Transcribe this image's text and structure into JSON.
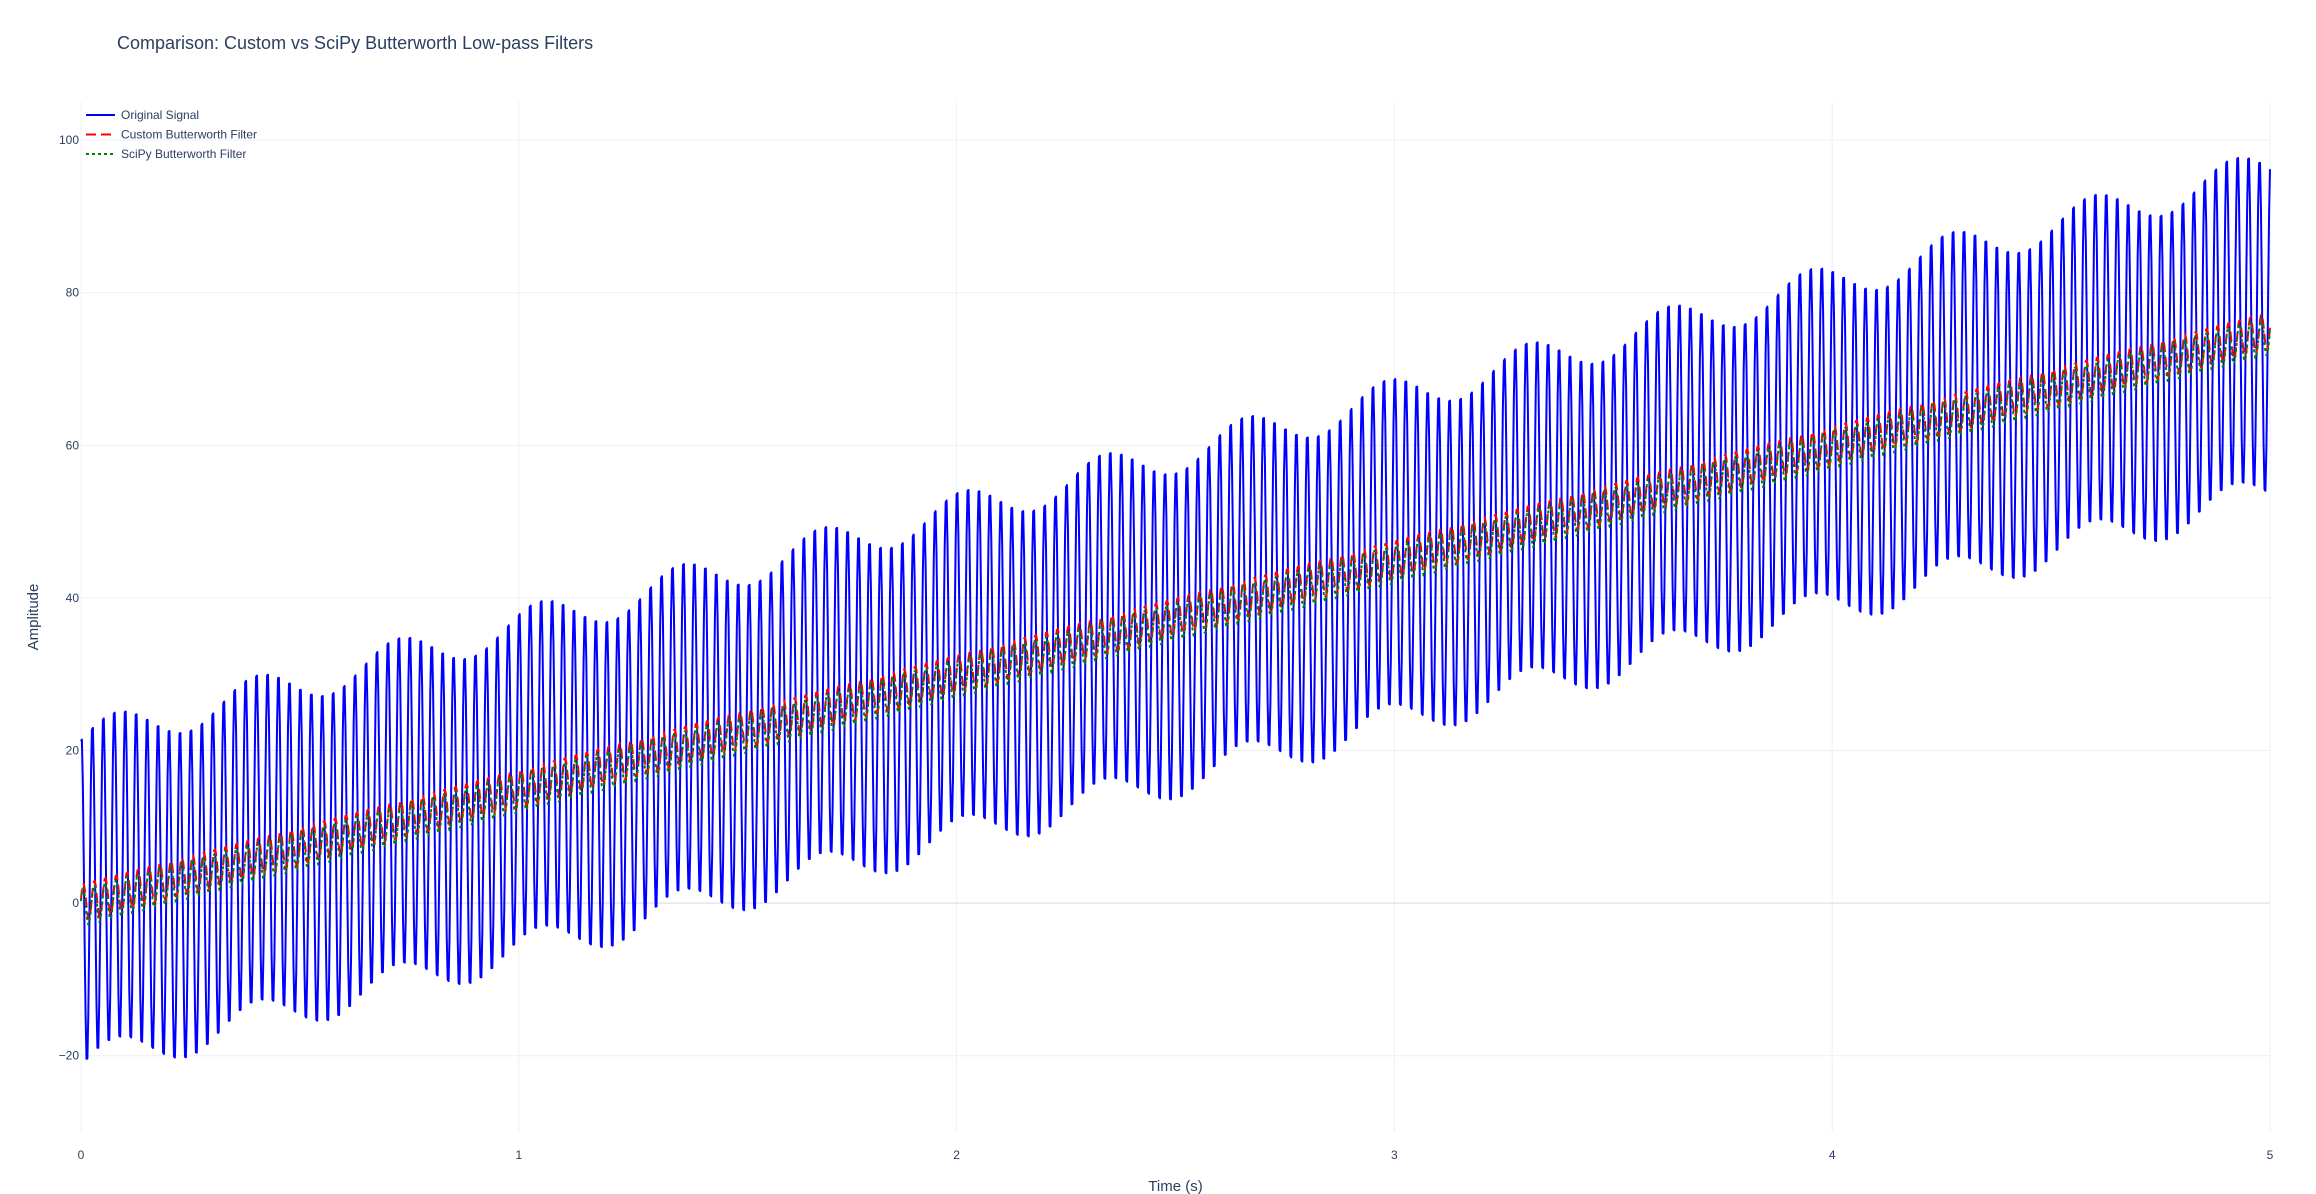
{
  "chart_data": {
    "type": "line",
    "title": "Comparison: Custom vs SciPy Butterworth Low-pass Filters",
    "xlabel": "Time (s)",
    "ylabel": "Amplitude",
    "xlim": [
      0,
      5
    ],
    "ylim": [
      -30,
      105
    ],
    "xticks": [
      0,
      1,
      2,
      3,
      4,
      5
    ],
    "yticks": [
      -20,
      0,
      20,
      40,
      60,
      80,
      100
    ],
    "ytick_labels": [
      "−20",
      "0",
      "20",
      "40",
      "60",
      "80",
      "100"
    ],
    "grid": true,
    "legend_position": "top-left",
    "signal_model": {
      "description": "trend + oscillation",
      "trend_start": 0,
      "trend_end": 75,
      "oscillation_frequency_hz": 40,
      "original_amplitude_start": 22,
      "original_amplitude_end": 22,
      "filtered_amplitude": 2.5
    },
    "series": [
      {
        "name": "Original Signal",
        "color": "#0000ff",
        "dash": "solid",
        "kind": "original"
      },
      {
        "name": "Custom Butterworth Filter",
        "color": "#ff0000",
        "dash": "dash",
        "kind": "custom"
      },
      {
        "name": "SciPy Butterworth Filter",
        "color": "#008000",
        "dash": "dot",
        "kind": "scipy"
      }
    ]
  }
}
